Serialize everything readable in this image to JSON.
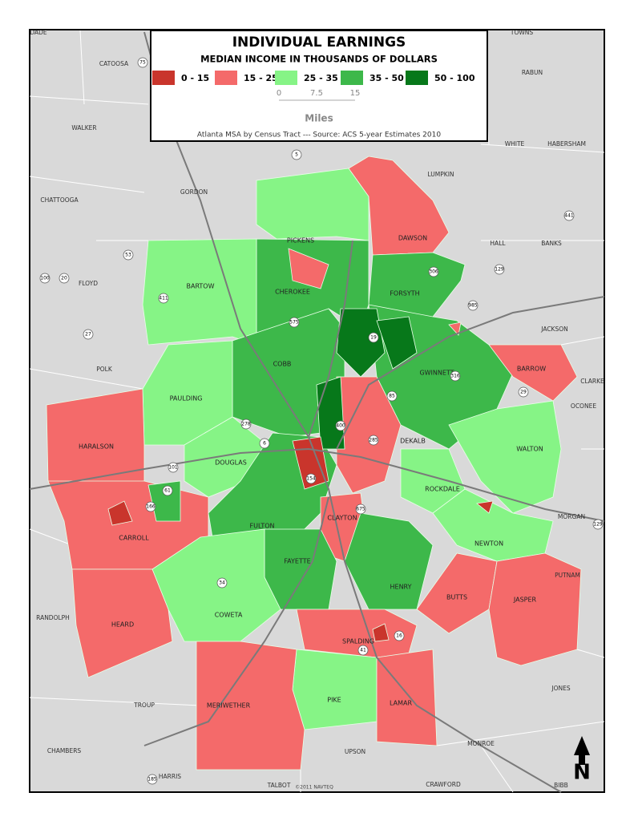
{
  "legend": {
    "title": "INDIVIDUAL EARNINGS",
    "subtitle": "MEDIAN INCOME IN THOUSANDS OF DOLLARS",
    "classes": [
      {
        "label": "0 - 15",
        "color": "#c9352c"
      },
      {
        "label": "15 - 25",
        "color": "#f46a6a"
      },
      {
        "label": "25 - 35",
        "color": "#86f486"
      },
      {
        "label": "35 - 50",
        "color": "#3db84a"
      },
      {
        "label": "50 - 100",
        "color": "#07781a"
      }
    ],
    "scale_ticks": [
      "0",
      "7.5",
      "15"
    ],
    "scale_unit": "Miles",
    "source": "Atlanta MSA by Census Tract --- Source: ACS 5-year Estimates 2010"
  },
  "counties": [
    "PICKENS",
    "DAWSON",
    "FORSYTH",
    "CHEROKEE",
    "BARTOW",
    "COBB",
    "GWINNETT",
    "BARROW",
    "PAULDING",
    "HARALSON",
    "CARROLL",
    "DOUGLAS",
    "FULTON",
    "DEKALB",
    "WALTON",
    "ROCKDALE",
    "NEWTON",
    "CLAYTON",
    "FAYETTE",
    "HENRY",
    "COWETA",
    "HEARD",
    "SPALDING",
    "BUTTS",
    "JASPER",
    "PIKE",
    "LAMAR",
    "MERIWETHER"
  ],
  "neighbors": [
    "DADE",
    "CATOOSA",
    "TOWNS",
    "RABUN",
    "WALKER",
    "WHITE",
    "HABERSHAM",
    "LUMPKIN",
    "GORDON",
    "CHATTOOGA",
    "HALL",
    "BANKS",
    "FLOYD",
    "JACKSON",
    "POLK",
    "CLARKE",
    "OCONEE",
    "MORGAN",
    "PUTNAM",
    "RANDOLPH",
    "TROUP",
    "JONES",
    "MONROE",
    "CHAMBERS",
    "UPSON",
    "HARRIS",
    "TALBOT",
    "CRAWFORD",
    "BIBB"
  ],
  "roads": [
    "75",
    "5",
    "53",
    "100",
    "20",
    "411",
    "27",
    "575",
    "19",
    "306",
    "985",
    "85",
    "316",
    "29",
    "278",
    "6",
    "400",
    "285",
    "101",
    "61",
    "166",
    "154",
    "675",
    "34",
    "16",
    "41",
    "129",
    "441",
    "129",
    "185"
  ],
  "credit": "©2011 NAVTEQ",
  "north_arrow": "N"
}
